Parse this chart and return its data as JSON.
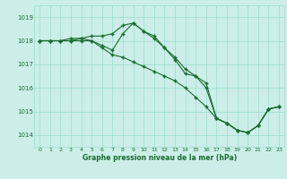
{
  "xlabel": "Graphe pression niveau de la mer (hPa)",
  "bg_color": "#cceee8",
  "grid_color": "#99ddcc",
  "line_color": "#1a6b30",
  "text_color": "#1a6b30",
  "ylim": [
    1013.5,
    1019.5
  ],
  "yticks": [
    1014,
    1015,
    1016,
    1017,
    1018,
    1019
  ],
  "xticks": [
    0,
    1,
    2,
    3,
    4,
    5,
    6,
    7,
    8,
    9,
    10,
    11,
    12,
    13,
    14,
    15,
    16,
    17,
    18,
    19,
    20,
    21,
    22,
    23
  ],
  "series": [
    [
      1018.0,
      1018.0,
      1018.0,
      1018.0,
      1018.1,
      1018.0,
      1017.8,
      1017.6,
      1018.3,
      1018.75,
      1018.4,
      1018.2,
      1017.7,
      1017.3,
      1016.8,
      1016.5,
      1016.0,
      1014.7,
      1014.5,
      1014.2,
      1014.1,
      1014.4,
      1015.1,
      1015.2
    ],
    [
      1018.0,
      1018.0,
      1018.0,
      1018.0,
      1018.0,
      1018.0,
      1017.7,
      1017.4,
      1017.3,
      1017.1,
      1016.9,
      1016.7,
      1016.5,
      1016.3,
      1016.0,
      1015.6,
      1015.2,
      1014.7,
      1014.5,
      1014.2,
      1014.1,
      1014.4,
      1015.1,
      1015.2
    ],
    [
      1018.0,
      1018.0,
      1018.0,
      1018.1,
      1018.1,
      1018.2,
      1018.2,
      1018.3,
      1018.65,
      1018.75,
      1018.4,
      1018.1,
      1017.7,
      1017.2,
      1016.6,
      1016.5,
      1016.2,
      1014.7,
      1014.5,
      1014.2,
      1014.1,
      1014.4,
      1015.1,
      1015.2
    ]
  ]
}
